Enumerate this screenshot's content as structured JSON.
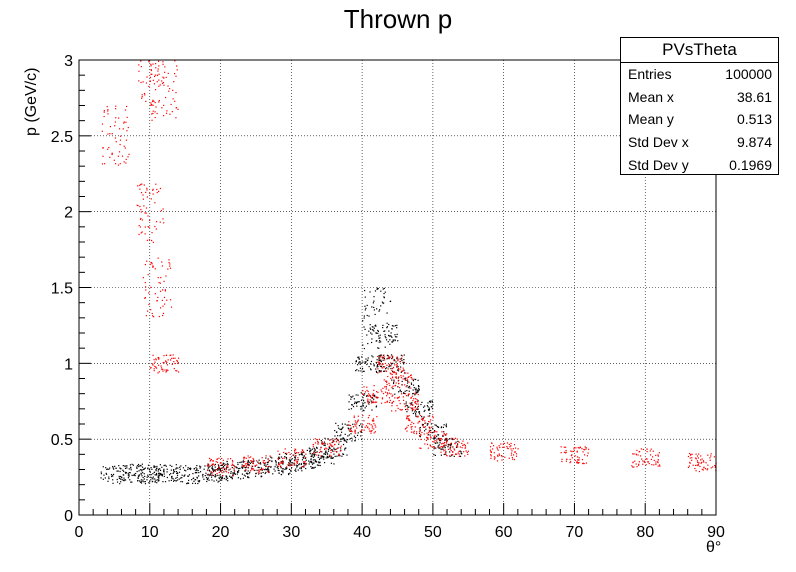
{
  "title": "Thrown p",
  "stats": {
    "name": "PVsTheta",
    "rows": [
      {
        "label": "Entries",
        "value": "100000"
      },
      {
        "label": "Mean x",
        "value": "38.61"
      },
      {
        "label": "Mean y",
        "value": "0.513"
      },
      {
        "label": "Std Dev x",
        "value": "9.874"
      },
      {
        "label": "Std Dev y",
        "value": "0.1969"
      }
    ]
  },
  "chart_data": {
    "type": "scatter",
    "title": "Thrown p",
    "xlabel": "θ°",
    "ylabel": "p (GeV/c)",
    "xlim": [
      0,
      90
    ],
    "ylim": [
      0,
      3
    ],
    "grid": true,
    "x_ticks": [
      0,
      10,
      20,
      30,
      40,
      50,
      60,
      70,
      80,
      90
    ],
    "y_ticks": [
      0,
      0.5,
      1,
      1.5,
      2,
      2.5,
      3
    ],
    "x_tick_labels": [
      "0",
      "10",
      "20",
      "30",
      "40",
      "50",
      "60",
      "70",
      "80",
      "90"
    ],
    "y_tick_labels": [
      "0",
      "0.5",
      "1",
      "1.5",
      "2",
      "2.5",
      "3"
    ],
    "legend": "stats box top-right",
    "series": [
      {
        "color": "#000000",
        "description_points": [
          [
            5,
            0.27
          ],
          [
            8,
            0.28
          ],
          [
            10,
            0.27
          ],
          [
            12,
            0.28
          ],
          [
            15,
            0.27
          ],
          [
            18,
            0.28
          ],
          [
            20,
            0.29
          ],
          [
            22,
            0.3
          ],
          [
            25,
            0.31
          ],
          [
            28,
            0.33
          ],
          [
            30,
            0.35
          ],
          [
            32,
            0.37
          ],
          [
            34,
            0.4
          ],
          [
            36,
            0.45
          ],
          [
            38,
            0.55
          ],
          [
            40,
            0.75
          ],
          [
            41,
            1.0
          ],
          [
            42,
            1.3
          ],
          [
            43,
            1.2
          ],
          [
            44,
            1.0
          ],
          [
            46,
            0.85
          ],
          [
            48,
            0.7
          ],
          [
            50,
            0.55
          ],
          [
            52,
            0.45
          ]
        ]
      },
      {
        "color": "#ff0000",
        "description_points": [
          [
            10,
            2.9
          ],
          [
            12,
            2.8
          ],
          [
            10,
            2.0
          ],
          [
            11,
            1.5
          ],
          [
            12,
            1.0
          ],
          [
            5,
            2.5
          ],
          [
            20,
            0.32
          ],
          [
            25,
            0.34
          ],
          [
            30,
            0.38
          ],
          [
            35,
            0.45
          ],
          [
            40,
            0.6
          ],
          [
            42,
            0.8
          ],
          [
            44,
            1.0
          ],
          [
            45,
            0.9
          ],
          [
            46,
            0.75
          ],
          [
            48,
            0.6
          ],
          [
            50,
            0.5
          ],
          [
            53,
            0.45
          ],
          [
            60,
            0.42
          ],
          [
            70,
            0.4
          ],
          [
            80,
            0.38
          ],
          [
            88,
            0.35
          ]
        ]
      }
    ]
  }
}
